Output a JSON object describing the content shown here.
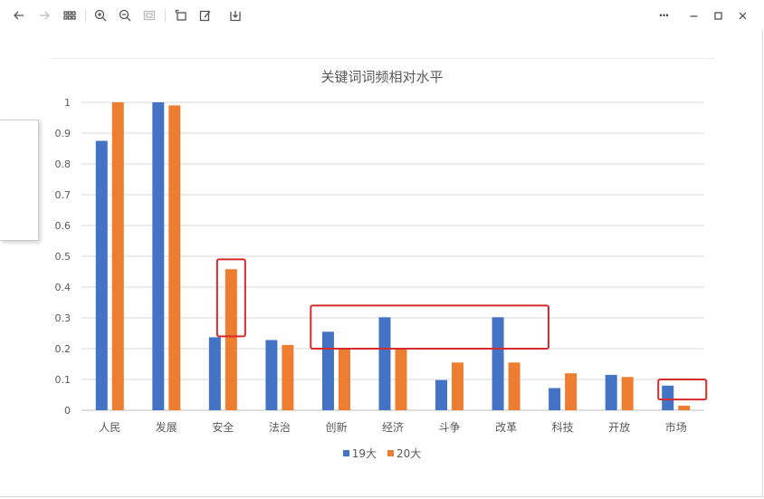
{
  "toolbar": {
    "icons": [
      "back-arrow-icon",
      "forward-arrow-icon",
      "grid-icon",
      "zoom-in-icon",
      "zoom-out-icon",
      "fit-icon",
      "rotate-icon",
      "edit-icon",
      "download-icon"
    ],
    "more_label": "···"
  },
  "colors": {
    "series_19": "#4472C4",
    "series_20": "#ED7D31",
    "highlight": "#D62B2B",
    "axis_text": "#595959",
    "grid": "#D9D9D9"
  },
  "chart_data": {
    "type": "bar",
    "title": "关键词词频相对水平",
    "categories": [
      "人民",
      "发展",
      "安全",
      "法治",
      "创新",
      "经济",
      "斗争",
      "改革",
      "科技",
      "开放",
      "市场"
    ],
    "series": [
      {
        "name": "19大",
        "values": [
          0.875,
          1.0,
          0.237,
          0.228,
          0.255,
          0.302,
          0.098,
          0.302,
          0.072,
          0.115,
          0.08
        ]
      },
      {
        "name": "20大",
        "values": [
          1.0,
          0.99,
          0.458,
          0.212,
          0.2,
          0.2,
          0.155,
          0.155,
          0.12,
          0.108,
          0.015
        ]
      }
    ],
    "ylim": [
      0,
      1
    ],
    "yticks": [
      "0",
      "0.1",
      "0.2",
      "0.3",
      "0.4",
      "0.5",
      "0.6",
      "0.7",
      "0.8",
      "0.9",
      "1"
    ],
    "grid": true,
    "legend_position": "bottom",
    "annotations": [
      {
        "type": "box",
        "from_category": "安全",
        "to_category": "安全",
        "series": "20大",
        "y_range": [
          0.24,
          0.49
        ]
      },
      {
        "type": "box",
        "from_category": "创新",
        "to_category": "改革",
        "y_range": [
          0.2,
          0.34
        ]
      },
      {
        "type": "box",
        "from_category": "市场",
        "to_category": "市场",
        "y_range": [
          0.035,
          0.1
        ]
      }
    ]
  }
}
